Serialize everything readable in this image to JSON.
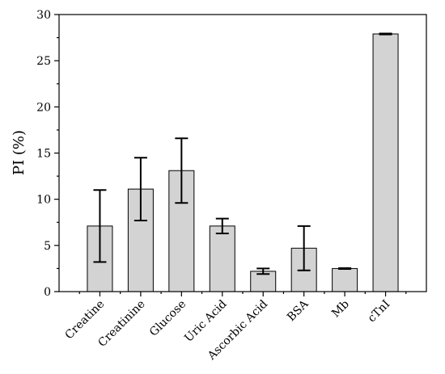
{
  "chart_data": {
    "type": "bar",
    "title": "",
    "xlabel": "",
    "ylabel": "PI (%)",
    "ylim": [
      0,
      30
    ],
    "yticks": [
      0,
      5,
      10,
      15,
      20,
      25,
      30
    ],
    "grid": false,
    "categories": [
      "Creatine",
      "Creatinine",
      "Glucose",
      "Uric Acid",
      "Ascorbic Acid",
      "BSA",
      "Mb",
      "cTnI"
    ],
    "values": [
      7.1,
      11.1,
      13.1,
      7.1,
      2.2,
      4.7,
      2.5,
      27.9
    ],
    "errors": [
      3.9,
      3.4,
      3.5,
      0.8,
      0.3,
      2.4,
      0.05,
      0.05
    ],
    "colors": {
      "bar_fill": "#d3d3d3",
      "bar_stroke": "#000000"
    }
  }
}
